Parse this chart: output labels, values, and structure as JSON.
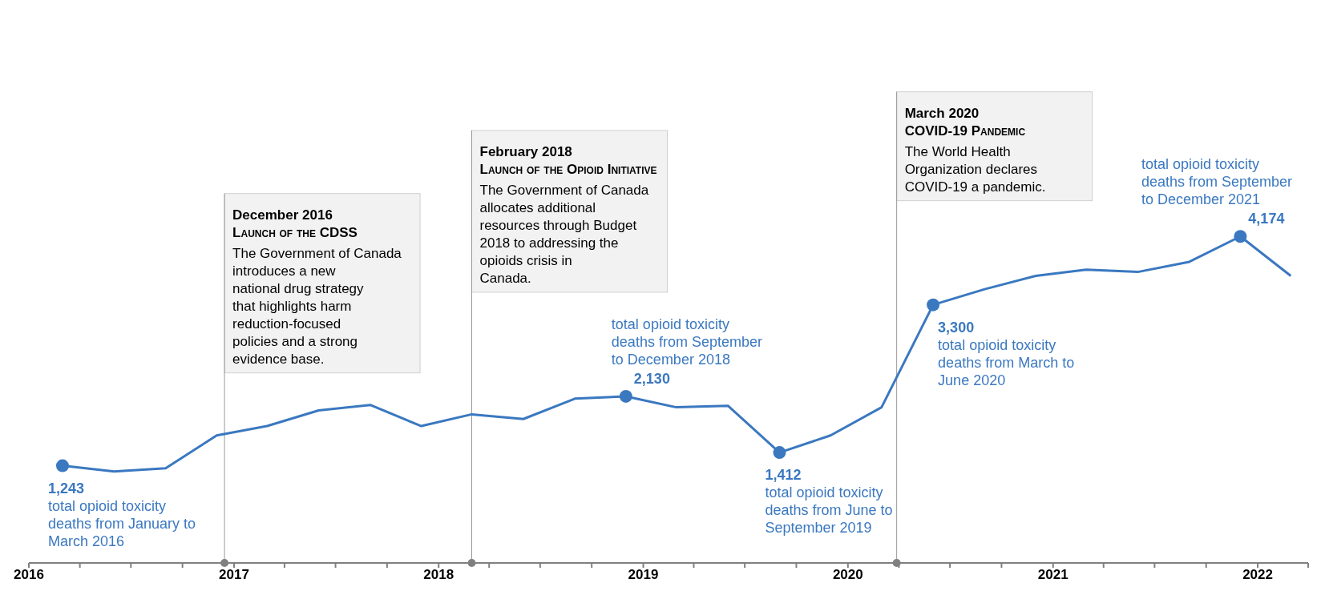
{
  "chart_data": {
    "type": "line",
    "x": [
      "2016-03",
      "2016-06",
      "2016-09",
      "2016-12",
      "2017-03",
      "2017-06",
      "2017-09",
      "2017-12",
      "2018-03",
      "2018-06",
      "2018-09",
      "2018-12",
      "2019-03",
      "2019-06",
      "2019-09",
      "2019-12",
      "2020-03",
      "2020-06",
      "2020-09",
      "2020-12",
      "2021-03",
      "2021-06",
      "2021-09",
      "2021-12",
      "2022-03"
    ],
    "series": [
      {
        "color": "#3a78c0",
        "values": [
          1243,
          1170,
          1210,
          1630,
          1750,
          1950,
          2020,
          1750,
          1900,
          1840,
          2100,
          2130,
          1990,
          2010,
          1412,
          1630,
          1990,
          3300,
          3500,
          3670,
          3750,
          3720,
          3850,
          4174,
          3670
        ],
        "value_labels": [
          "1,243",
          null,
          null,
          null,
          null,
          null,
          null,
          null,
          null,
          null,
          null,
          "2,130",
          null,
          null,
          "1,412",
          null,
          null,
          "3,300",
          null,
          null,
          null,
          null,
          null,
          "4,174",
          null
        ]
      }
    ],
    "xlim": [
      "2016-01",
      "2022-04"
    ],
    "xticks": [
      {
        "value": "2016-01",
        "label": "2016"
      },
      {
        "value": "2016-04",
        "label": null
      },
      {
        "value": "2016-07",
        "label": null
      },
      {
        "value": "2016-10",
        "label": null
      },
      {
        "value": "2017-01",
        "label": "2017"
      },
      {
        "value": "2017-04",
        "label": null
      },
      {
        "value": "2017-07",
        "label": null
      },
      {
        "value": "2017-10",
        "label": null
      },
      {
        "value": "2018-01",
        "label": "2018"
      },
      {
        "value": "2018-04",
        "label": null
      },
      {
        "value": "2018-07",
        "label": null
      },
      {
        "value": "2018-10",
        "label": null
      },
      {
        "value": "2019-01",
        "label": "2019"
      },
      {
        "value": "2019-04",
        "label": null
      },
      {
        "value": "2019-07",
        "label": null
      },
      {
        "value": "2019-10",
        "label": null
      },
      {
        "value": "2020-01",
        "label": "2020"
      },
      {
        "value": "2020-04",
        "label": null
      },
      {
        "value": "2020-07",
        "label": null
      },
      {
        "value": "2020-10",
        "label": null
      },
      {
        "value": "2021-01",
        "label": "2021"
      },
      {
        "value": "2021-04",
        "label": null
      },
      {
        "value": "2021-07",
        "label": null
      },
      {
        "value": "2021-10",
        "label": null
      },
      {
        "value": "2022-01",
        "label": "2022"
      },
      {
        "value": "2022-04",
        "label": null
      }
    ],
    "tick_labels": "x",
    "grid": false,
    "ref_lines": [
      {
        "axis": "x",
        "value": "2016-12-15",
        "label": "December 2016\nLaunch of the CDSS\nThe Government of Canada introduces a new national drug strategy that highlights harm reduction-focused policies and a strong evidence base."
      },
      {
        "axis": "x",
        "value": "2018-03-01",
        "label": "February 2018\nLaunch of the Opioid Initiative\nThe Government of Canada allocates additional resources through Budget 2018 to addressing the opioids crisis in Canada."
      },
      {
        "axis": "x",
        "value": "2020-03-28",
        "label": "March 2020\nCOVID-19 Pandemic\nThe World Health Organization declares COVID-19 a pandemic."
      }
    ],
    "annotations": [
      {
        "text": "total opioid toxicity deaths from January to March 2016",
        "x": "2016-03",
        "y": 1243
      },
      {
        "text": "total opioid toxicity deaths from September to December 2018",
        "x": "2018-12",
        "y": 2130
      },
      {
        "text": "total opioid toxicity deaths from June to September 2019",
        "x": "2019-09",
        "y": 1412
      },
      {
        "text": "total opioid toxicity deaths from March to June 2020",
        "x": "2020-06",
        "y": 3300
      },
      {
        "text": "total opioid toxicity deaths from September to December 2021",
        "x": "2021-12",
        "y": 4174
      }
    ]
  }
}
